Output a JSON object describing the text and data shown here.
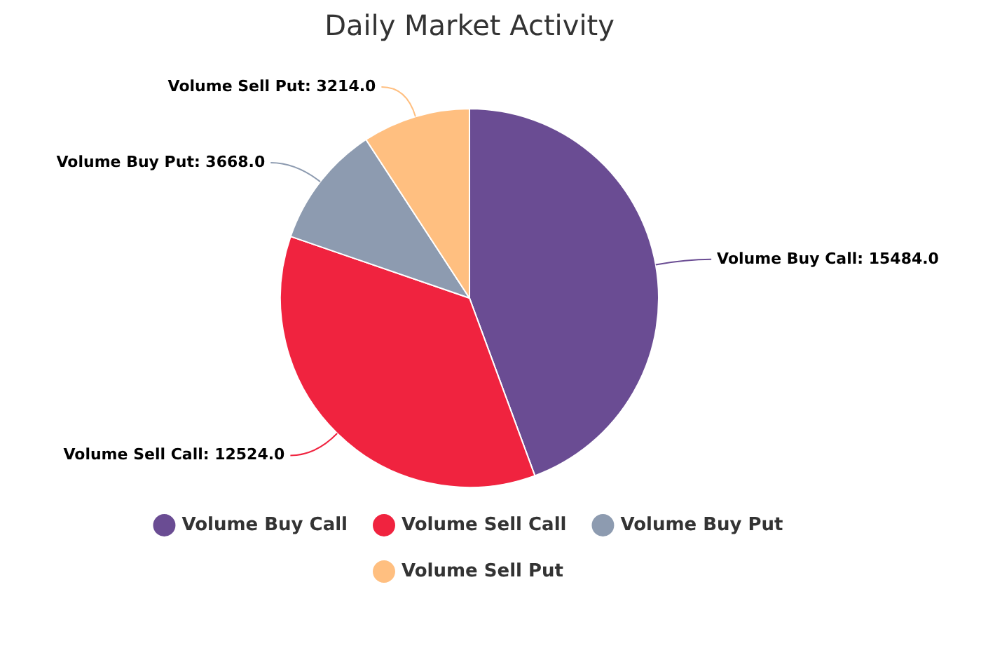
{
  "chart_data": {
    "type": "pie",
    "title": "Daily Market Activity",
    "categories": [
      "Volume Buy Call",
      "Volume Sell Call",
      "Volume Buy Put",
      "Volume Sell Put"
    ],
    "values": [
      15484,
      12524,
      3668,
      3214
    ],
    "value_labels": [
      "Volume Buy Call: 15484.0",
      "Volume Sell Call: 12524.0",
      "Volume Buy Put: 3668.0",
      "Volume Sell Put: 3214.0"
    ],
    "colors": [
      "#6a4c93",
      "#f0233f",
      "#8d9bb0",
      "#ffbf80"
    ],
    "legend": "bottom"
  }
}
